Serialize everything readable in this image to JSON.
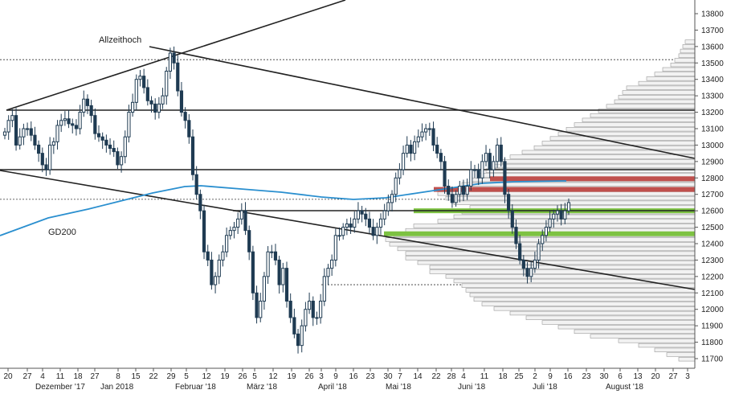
{
  "colors": {
    "candle": "#1f3b52",
    "ma": "#2a8fcf",
    "trend": "#222222",
    "resistance_zone": "#c0504d",
    "support_zone": "#7dc242",
    "volume_profile_fill": "#f2f2f2",
    "volume_profile_stroke": "#9a9a9a"
  },
  "chart_data": {
    "type": "candlestick",
    "title": "",
    "xlabel": "",
    "ylabel": "",
    "ylim": [
      11650,
      13900
    ],
    "y_ticks": [
      11700,
      11800,
      11900,
      12000,
      12100,
      12200,
      12300,
      12400,
      12500,
      12600,
      12700,
      12800,
      12900,
      13000,
      13100,
      13200,
      13300,
      13400,
      13500,
      13600,
      13700,
      13800
    ],
    "x_day_ticks": [
      "20",
      "27",
      "4",
      "11",
      "18",
      "27",
      "8",
      "15",
      "22",
      "29",
      "5",
      "12",
      "19",
      "26",
      "5",
      "12",
      "19",
      "26",
      "3",
      "9",
      "16",
      "23",
      "30",
      "7",
      "14",
      "22",
      "28",
      "4",
      "11",
      "18",
      "25",
      "2",
      "9",
      "16",
      "23",
      "30",
      "6",
      "13",
      "20",
      "27",
      "3"
    ],
    "x_month_labels": [
      "Dezember '17",
      "Jan 2018",
      "Februar '18",
      "März '18",
      "April '18",
      "Mai '18",
      "Juni '18",
      "Juli '18",
      "August '18"
    ],
    "closes": [
      13080,
      13150,
      13180,
      13000,
      13050,
      13100,
      13100,
      13060,
      13000,
      12950,
      12880,
      12850,
      13000,
      13020,
      13120,
      13150,
      13160,
      13130,
      13120,
      13100,
      13200,
      13280,
      13240,
      13180,
      13070,
      13050,
      13030,
      13000,
      12980,
      12960,
      12880,
      12930,
      13050,
      13200,
      13260,
      13400,
      13420,
      13350,
      13270,
      13250,
      13200,
      13250,
      13300,
      13450,
      13560,
      13500,
      13330,
      13200,
      13150,
      13050,
      12820,
      12700,
      12600,
      12350,
      12300,
      12150,
      12200,
      12300,
      12350,
      12450,
      12480,
      12500,
      12550,
      12600,
      12480,
      12350,
      12100,
      11950,
      12050,
      12200,
      12350,
      12350,
      12300,
      12150,
      12250,
      12050,
      11950,
      11850,
      11780,
      11900,
      12000,
      12050,
      11950,
      11950,
      12050,
      12200,
      12250,
      12300,
      12450,
      12450,
      12500,
      12520,
      12500,
      12550,
      12600,
      12580,
      12550,
      12500,
      12450,
      12500,
      12550,
      12600,
      12650,
      12700,
      12800,
      12850,
      12950,
      13000,
      12950,
      13020,
      13050,
      13080,
      13100,
      13100,
      13000,
      12950,
      12900,
      12750,
      12700,
      12650,
      12700,
      12750,
      12700,
      12750,
      12850,
      12850,
      12800,
      12900,
      12950,
      12850,
      12900,
      13000,
      12900,
      12700,
      12600,
      12500,
      12400,
      12300,
      12250,
      12200,
      12250,
      12300,
      12400,
      12450,
      12500,
      12550,
      12580,
      12600,
      12550,
      12600,
      12650
    ],
    "volume_profile_label": "",
    "annotations": [
      {
        "text": "Allzeithoch"
      },
      {
        "text": "GD200"
      }
    ]
  }
}
